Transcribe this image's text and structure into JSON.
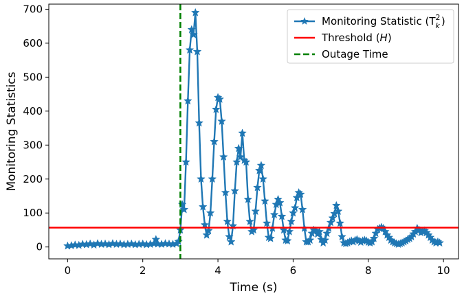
{
  "chart_data": {
    "type": "line",
    "xlabel": "Time (s)",
    "ylabel": "Monitoring Statistics",
    "xlim": [
      -0.5,
      10.4
    ],
    "ylim": [
      -35,
      715
    ],
    "x_ticks": [
      0,
      2,
      4,
      6,
      8,
      10
    ],
    "y_ticks": [
      0,
      100,
      200,
      300,
      400,
      500,
      600,
      700
    ],
    "grid": false,
    "legend_position": "upper-right",
    "colors": {
      "statistic": "#1f77b4",
      "threshold": "#ff0000",
      "outage": "#008000"
    },
    "legend": [
      {
        "key": "statistic",
        "text": "Monitoring Statistic (T",
        "sup": "2",
        "sub": "k",
        "close": ")"
      },
      {
        "key": "threshold",
        "text": "Threshold (",
        "italic": "H",
        "close": ")"
      },
      {
        "key": "outage",
        "text": "Outage Time"
      }
    ],
    "threshold": 57,
    "outage_time": 3.0,
    "series": [
      {
        "key": "statistic",
        "marker": "star",
        "points": [
          [
            0.0,
            3
          ],
          [
            0.1,
            4
          ],
          [
            0.2,
            6
          ],
          [
            0.3,
            5
          ],
          [
            0.4,
            8
          ],
          [
            0.5,
            7
          ],
          [
            0.6,
            9
          ],
          [
            0.7,
            6
          ],
          [
            0.8,
            10
          ],
          [
            0.9,
            8
          ],
          [
            1.0,
            9
          ],
          [
            1.1,
            7
          ],
          [
            1.2,
            10
          ],
          [
            1.3,
            8
          ],
          [
            1.4,
            9
          ],
          [
            1.5,
            7
          ],
          [
            1.6,
            8
          ],
          [
            1.7,
            9
          ],
          [
            1.8,
            7
          ],
          [
            1.9,
            8
          ],
          [
            2.0,
            9
          ],
          [
            2.1,
            7
          ],
          [
            2.2,
            8
          ],
          [
            2.3,
            10
          ],
          [
            2.35,
            22
          ],
          [
            2.4,
            9
          ],
          [
            2.5,
            8
          ],
          [
            2.6,
            10
          ],
          [
            2.7,
            9
          ],
          [
            2.8,
            8
          ],
          [
            2.9,
            10
          ],
          [
            2.95,
            16
          ],
          [
            3.0,
            50
          ],
          [
            3.05,
            125
          ],
          [
            3.1,
            110
          ],
          [
            3.15,
            250
          ],
          [
            3.2,
            430
          ],
          [
            3.25,
            580
          ],
          [
            3.3,
            640
          ],
          [
            3.35,
            625
          ],
          [
            3.4,
            690
          ],
          [
            3.45,
            575
          ],
          [
            3.5,
            365
          ],
          [
            3.55,
            200
          ],
          [
            3.6,
            118
          ],
          [
            3.65,
            65
          ],
          [
            3.7,
            35
          ],
          [
            3.75,
            48
          ],
          [
            3.8,
            100
          ],
          [
            3.85,
            200
          ],
          [
            3.9,
            310
          ],
          [
            3.95,
            405
          ],
          [
            4.0,
            440
          ],
          [
            4.05,
            435
          ],
          [
            4.1,
            370
          ],
          [
            4.15,
            265
          ],
          [
            4.2,
            160
          ],
          [
            4.25,
            75
          ],
          [
            4.3,
            30
          ],
          [
            4.35,
            15
          ],
          [
            4.4,
            62
          ],
          [
            4.45,
            165
          ],
          [
            4.5,
            250
          ],
          [
            4.55,
            290
          ],
          [
            4.6,
            265
          ],
          [
            4.65,
            335
          ],
          [
            4.7,
            255
          ],
          [
            4.75,
            250
          ],
          [
            4.8,
            140
          ],
          [
            4.85,
            75
          ],
          [
            4.9,
            45
          ],
          [
            4.95,
            50
          ],
          [
            5.0,
            105
          ],
          [
            5.05,
            175
          ],
          [
            5.1,
            225
          ],
          [
            5.15,
            240
          ],
          [
            5.2,
            200
          ],
          [
            5.25,
            135
          ],
          [
            5.3,
            70
          ],
          [
            5.35,
            28
          ],
          [
            5.4,
            25
          ],
          [
            5.45,
            55
          ],
          [
            5.5,
            95
          ],
          [
            5.55,
            125
          ],
          [
            5.6,
            140
          ],
          [
            5.65,
            130
          ],
          [
            5.7,
            90
          ],
          [
            5.75,
            50
          ],
          [
            5.8,
            20
          ],
          [
            5.85,
            18
          ],
          [
            5.9,
            45
          ],
          [
            5.95,
            75
          ],
          [
            6.0,
            100
          ],
          [
            6.05,
            115
          ],
          [
            6.1,
            145
          ],
          [
            6.15,
            160
          ],
          [
            6.2,
            155
          ],
          [
            6.25,
            110
          ],
          [
            6.3,
            55
          ],
          [
            6.35,
            15
          ],
          [
            6.4,
            15
          ],
          [
            6.45,
            20
          ],
          [
            6.5,
            40
          ],
          [
            6.55,
            50
          ],
          [
            6.6,
            48
          ],
          [
            6.65,
            38
          ],
          [
            6.7,
            45
          ],
          [
            6.75,
            22
          ],
          [
            6.8,
            12
          ],
          [
            6.85,
            20
          ],
          [
            6.9,
            40
          ],
          [
            6.95,
            55
          ],
          [
            7.0,
            72
          ],
          [
            7.05,
            85
          ],
          [
            7.1,
            98
          ],
          [
            7.15,
            122
          ],
          [
            7.2,
            105
          ],
          [
            7.25,
            70
          ],
          [
            7.3,
            30
          ],
          [
            7.35,
            12
          ],
          [
            7.4,
            10
          ],
          [
            7.45,
            12
          ],
          [
            7.5,
            15
          ],
          [
            7.55,
            18
          ],
          [
            7.6,
            15
          ],
          [
            7.65,
            20
          ],
          [
            7.7,
            22
          ],
          [
            7.75,
            18
          ],
          [
            7.8,
            14
          ],
          [
            7.85,
            18
          ],
          [
            7.9,
            20
          ],
          [
            7.95,
            18
          ],
          [
            8.0,
            14
          ],
          [
            8.05,
            12
          ],
          [
            8.1,
            15
          ],
          [
            8.15,
            25
          ],
          [
            8.2,
            40
          ],
          [
            8.25,
            52
          ],
          [
            8.3,
            55
          ],
          [
            8.35,
            58
          ],
          [
            8.4,
            55
          ],
          [
            8.45,
            45
          ],
          [
            8.5,
            35
          ],
          [
            8.55,
            28
          ],
          [
            8.6,
            20
          ],
          [
            8.65,
            15
          ],
          [
            8.7,
            12
          ],
          [
            8.75,
            10
          ],
          [
            8.8,
            8
          ],
          [
            8.85,
            10
          ],
          [
            8.9,
            12
          ],
          [
            8.95,
            15
          ],
          [
            9.0,
            18
          ],
          [
            9.05,
            22
          ],
          [
            9.1,
            25
          ],
          [
            9.15,
            30
          ],
          [
            9.2,
            38
          ],
          [
            9.25,
            45
          ],
          [
            9.3,
            55
          ],
          [
            9.35,
            50
          ],
          [
            9.4,
            42
          ],
          [
            9.45,
            45
          ],
          [
            9.5,
            48
          ],
          [
            9.55,
            42
          ],
          [
            9.6,
            35
          ],
          [
            9.65,
            28
          ],
          [
            9.7,
            20
          ],
          [
            9.75,
            15
          ],
          [
            9.8,
            12
          ],
          [
            9.85,
            15
          ],
          [
            9.9,
            12
          ]
        ]
      }
    ]
  }
}
